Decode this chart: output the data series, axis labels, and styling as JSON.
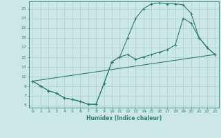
{
  "xlabel": "Humidex (Indice chaleur)",
  "bg_color": "#cce8e4",
  "line_color": "#2e7d6e",
  "grid_color": "#aacfca",
  "xlim": [
    -0.5,
    23.5
  ],
  "ylim": [
    4.5,
    26.5
  ],
  "xticks": [
    0,
    1,
    2,
    3,
    4,
    5,
    6,
    7,
    8,
    9,
    10,
    11,
    12,
    13,
    14,
    15,
    16,
    17,
    18,
    19,
    20,
    21,
    22,
    23
  ],
  "yticks": [
    5,
    7,
    9,
    11,
    13,
    15,
    17,
    19,
    21,
    23,
    25
  ],
  "line1_x": [
    0,
    1,
    2,
    3,
    4,
    5,
    6,
    7,
    8,
    9,
    10,
    11,
    12,
    13,
    14,
    15,
    16,
    17,
    18,
    19,
    20,
    21,
    22,
    23
  ],
  "line1_y": [
    10,
    9,
    8,
    7.5,
    6.5,
    6.2,
    5.8,
    5.2,
    5.2,
    9.5,
    14,
    15,
    19,
    23,
    25,
    26,
    26.2,
    26,
    26,
    25.8,
    24,
    19,
    17,
    15.5
  ],
  "line2_x": [
    0,
    1,
    2,
    3,
    4,
    5,
    6,
    7,
    8,
    9,
    10,
    11,
    12,
    13,
    14,
    15,
    16,
    17,
    18,
    19,
    20,
    21,
    22,
    23
  ],
  "line2_y": [
    10,
    9,
    8,
    7.5,
    6.5,
    6.2,
    5.8,
    5.2,
    5.2,
    9.5,
    14,
    15,
    15.5,
    14.5,
    15.0,
    15.5,
    16.0,
    16.5,
    17.5,
    23,
    22,
    19,
    17,
    15.5
  ],
  "line3_x": [
    0,
    23
  ],
  "line3_y": [
    10,
    15.5
  ]
}
